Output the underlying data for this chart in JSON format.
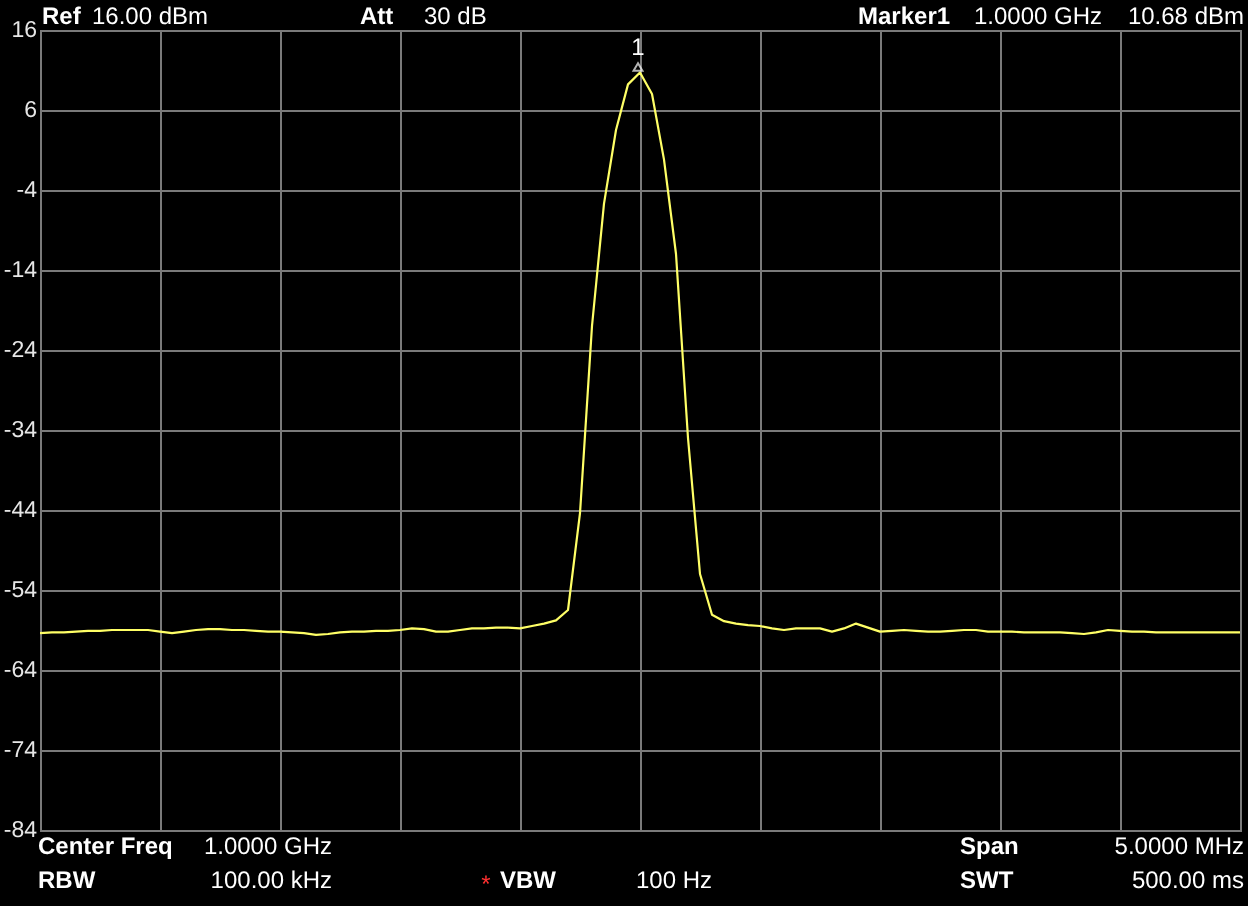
{
  "chart_data": {
    "type": "line",
    "categories": [
      null,
      null,
      null,
      null,
      null,
      null,
      null,
      null,
      null,
      null,
      null,
      null,
      null,
      null,
      null,
      null,
      null,
      null,
      null,
      null,
      null,
      null,
      null,
      null,
      null,
      null,
      null,
      null,
      null,
      null,
      null,
      null,
      null,
      null,
      null,
      null,
      null,
      null,
      null,
      null,
      null,
      null,
      null,
      null,
      null,
      null,
      null,
      null,
      null,
      null,
      null,
      null,
      null,
      null,
      null,
      null,
      null,
      null,
      null,
      null,
      null,
      null,
      null,
      null,
      null,
      null,
      null,
      null,
      null,
      null,
      null,
      null,
      null,
      null,
      null,
      null,
      null,
      null,
      null,
      null,
      null,
      null,
      null,
      null,
      null,
      null,
      null,
      null,
      null,
      null,
      null,
      null,
      null,
      null,
      null,
      null,
      null,
      null,
      null,
      null,
      null
    ],
    "values": [
      -59.4,
      -59.3,
      -59.3,
      -59.2,
      -59.1,
      -59.1,
      -59.0,
      -59.0,
      -59.0,
      -59.0,
      -59.2,
      -59.4,
      -59.2,
      -59.0,
      -58.9,
      -58.9,
      -59.0,
      -59.0,
      -59.1,
      -59.2,
      -59.2,
      -59.3,
      -59.4,
      -59.6,
      -59.5,
      -59.3,
      -59.2,
      -59.2,
      -59.1,
      -59.1,
      -59.0,
      -58.8,
      -58.9,
      -59.2,
      -59.2,
      -59.0,
      -58.8,
      -58.8,
      -58.7,
      -58.7,
      -58.8,
      -58.5,
      -58.2,
      -57.8,
      -56.5,
      -44.4,
      -21.0,
      -5.7,
      3.5,
      9.2,
      10.68,
      8.0,
      -0.2,
      -12.0,
      -35.0,
      -52.0,
      -57.1,
      -57.9,
      -58.2,
      -58.4,
      -58.5,
      -58.8,
      -59.0,
      -58.8,
      -58.8,
      -58.8,
      -59.2,
      -58.8,
      -58.2,
      -58.7,
      -59.2,
      -59.1,
      -59.0,
      -59.1,
      -59.2,
      -59.2,
      -59.1,
      -59.0,
      -59.0,
      -59.2,
      -59.2,
      -59.2,
      -59.3,
      -59.3,
      -59.3,
      -59.3,
      -59.4,
      -59.5,
      -59.3,
      -59.0,
      -59.1,
      -59.2,
      -59.2,
      -59.3,
      -59.3,
      -59.3,
      -59.3,
      -59.3,
      -59.3,
      -59.3,
      -59.3
    ],
    "color": "#ffff66",
    "ylim": [
      -84,
      16
    ],
    "yticks": [
      -84,
      -74,
      -64,
      -54,
      -44,
      -34,
      -24,
      -14,
      -4,
      6,
      16
    ],
    "grid": true,
    "tick_labels": "y",
    "annotations": [
      "Ref",
      "16.00 dBm",
      "Att",
      "30 dB",
      "Marker1",
      "1.0000 GHz",
      "10.68 dBm",
      "1",
      "Center Freq",
      "1.0000 GHz",
      "Span",
      "5.0000 MHz",
      "RBW",
      "100.00 kHz",
      "*",
      "VBW",
      "100 Hz",
      "SWT",
      "500.00 ms"
    ]
  }
}
